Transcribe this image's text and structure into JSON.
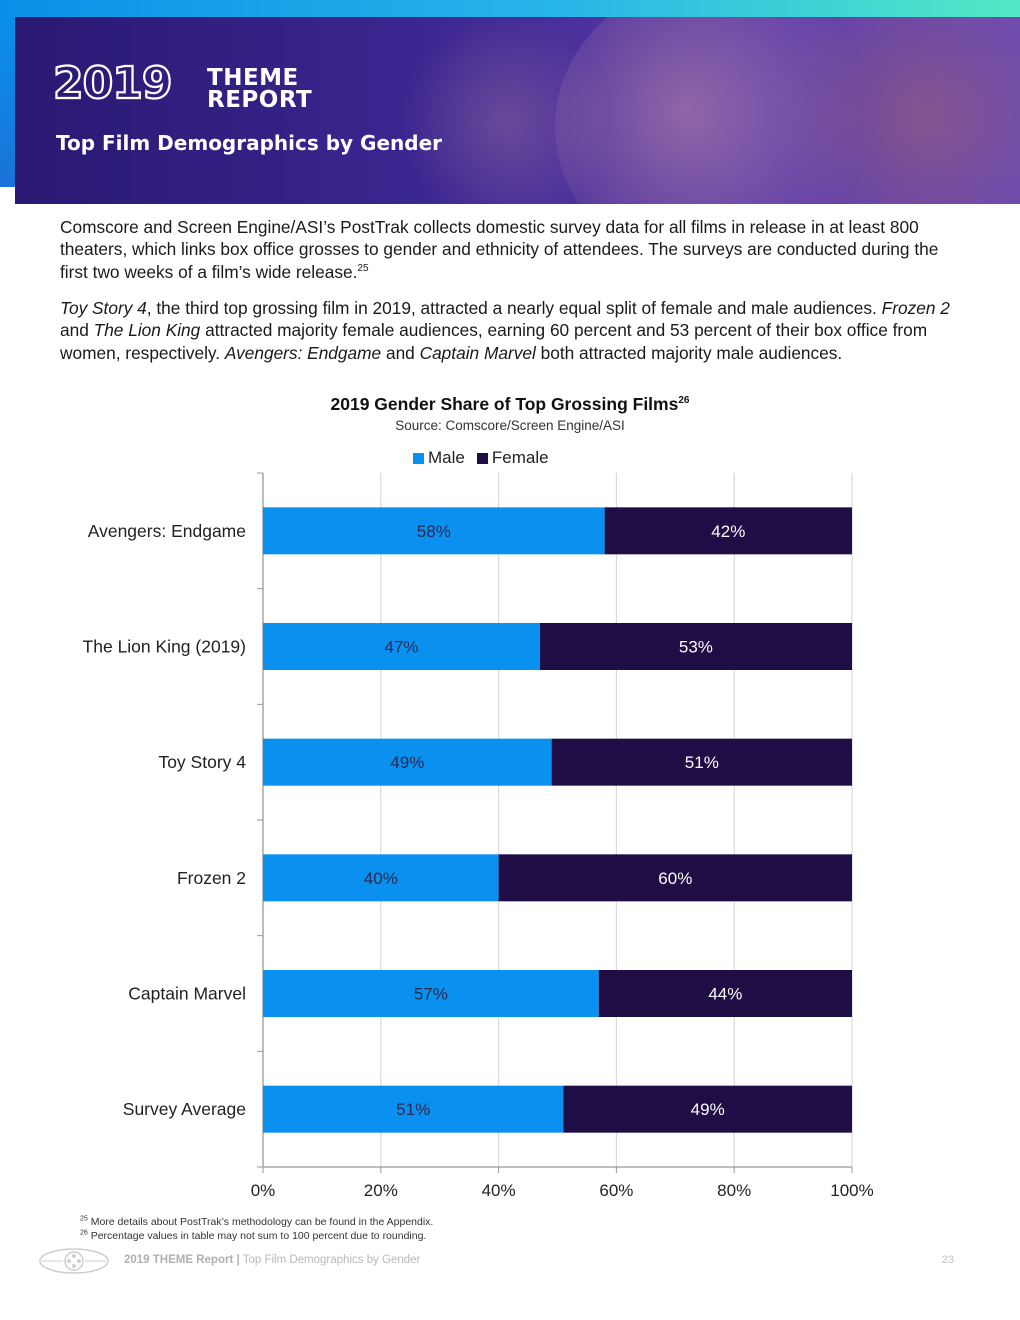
{
  "header": {
    "year": "2019",
    "theme_line1": "THEME",
    "theme_line2": "REPORT",
    "title": "Top Film Demographics by Gender"
  },
  "body": {
    "p1": "Comscore and Screen Engine/ASI’s PostTrak collects domestic survey data for all films in release in at least 800 theaters, which links box office grosses to gender and ethnicity of attendees. The surveys are conducted during the first two weeks of a film’s wide release.",
    "p1_ref": "25",
    "p2": {
      "toy_story": "Toy Story 4",
      "t1": ", the third top grossing film in 2019, attracted a nearly equal split of female and male audiences. ",
      "frozen": "Frozen 2",
      "t2": " and ",
      "lion_king": "The Lion King",
      "t3": " attracted majority female audiences, earning 60 percent and 53 percent of their box office from women, respectively. ",
      "avengers": "Avengers: Endgame",
      "t4": " and ",
      "captain": "Captain Marvel",
      "t5": " both attracted majority male audiences."
    }
  },
  "chart_data": {
    "type": "bar",
    "orientation": "horizontal-stacked-100",
    "title": "2019 Gender Share of Top Grossing Films",
    "title_ref": "26",
    "source": "Source: Comscore/Screen Engine/ASI",
    "categories": [
      "Avengers: Endgame",
      "The Lion King (2019)",
      "Toy Story 4",
      "Frozen 2",
      "Captain Marvel",
      "Survey Average"
    ],
    "series": [
      {
        "name": "Male",
        "color": "#0a90ee",
        "values": [
          58,
          47,
          49,
          40,
          57,
          51
        ],
        "labels": [
          "58%",
          "47%",
          "49%",
          "40%",
          "57%",
          "51%"
        ]
      },
      {
        "name": "Female",
        "color": "#1f0d46",
        "values": [
          42,
          53,
          51,
          60,
          44,
          49
        ],
        "labels": [
          "42%",
          "53%",
          "51%",
          "60%",
          "44%",
          "49%"
        ]
      }
    ],
    "x_ticks": [
      "0%",
      "20%",
      "40%",
      "60%",
      "80%",
      "100%"
    ],
    "xlim": [
      0,
      100
    ],
    "grid": true,
    "legend": "top-center"
  },
  "footnotes": {
    "n25_num": "25",
    "n25": "More details about PostTrak’s methodology can be found in the Appendix.",
    "n26_num": "26",
    "n26": "Percentage values in table may not sum to 100 percent due to rounding."
  },
  "footer": {
    "report": "2019 THEME Report",
    "separator": "|",
    "section": "Top Film Demographics by Gender",
    "page": "23"
  },
  "colors": {
    "male": "#0a90ee",
    "female": "#1f0d46",
    "banner": "#2a1872"
  }
}
